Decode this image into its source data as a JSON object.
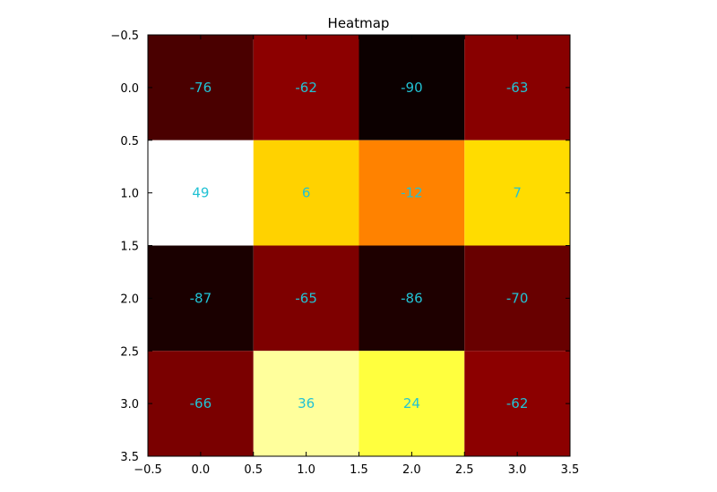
{
  "chart_data": {
    "type": "heatmap",
    "title": "Heatmap",
    "xlabel": "",
    "ylabel": "",
    "xlim": [
      -0.5,
      3.5
    ],
    "ylim": [
      3.5,
      -0.5
    ],
    "y_inverted": true,
    "x_ticks": [
      "−0.5",
      "0.0",
      "0.5",
      "1.0",
      "1.5",
      "2.0",
      "2.5",
      "3.0",
      "3.5"
    ],
    "y_ticks": [
      "−0.5",
      "0.0",
      "0.5",
      "1.0",
      "1.5",
      "2.0",
      "2.5",
      "3.0",
      "3.5"
    ],
    "colormap": "hot",
    "grid": false,
    "values": [
      [
        -76,
        -62,
        -90,
        -63
      ],
      [
        49,
        6,
        -12,
        7
      ],
      [
        -87,
        -65,
        -86,
        -70
      ],
      [
        -66,
        36,
        24,
        -62
      ]
    ],
    "cell_fill_colors": [
      [
        "#4a0000",
        "#8c0000",
        "#0c0000",
        "#880000"
      ],
      [
        "#ffffff",
        "#ffd200",
        "#ff8200",
        "#ffdc00"
      ],
      [
        "#1a0000",
        "#7e0000",
        "#1e0000",
        "#680000"
      ],
      [
        "#7a0000",
        "#ffff9c",
        "#ffff3e",
        "#8c0000"
      ]
    ],
    "label_color": "#22c2d4"
  }
}
